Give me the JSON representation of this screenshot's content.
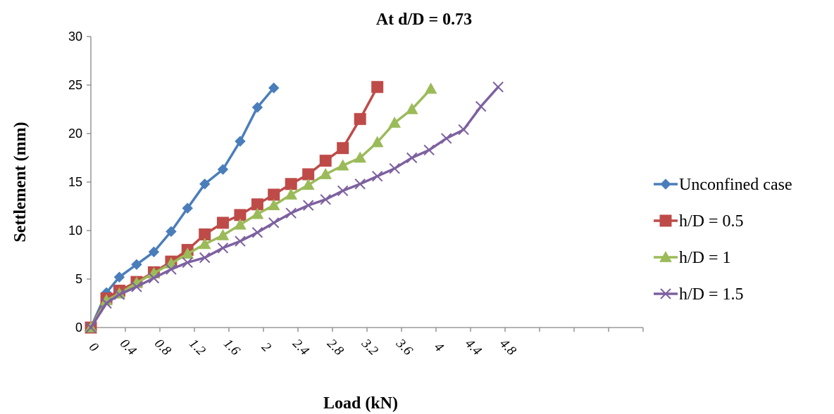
{
  "chart_data": {
    "type": "line",
    "title": "At d/D = 0.73",
    "xlabel": "Load (kN)",
    "ylabel": "Settlement (mm)",
    "xlim": [
      0,
      6.4
    ],
    "ylim": [
      0,
      30
    ],
    "x_ticks": [
      "0",
      "0.4",
      "0.8",
      "1.2",
      "1.6",
      "2",
      "2.4",
      "2.8",
      "3.2",
      "3.6",
      "4",
      "4.4",
      "4.8"
    ],
    "y_ticks": [
      "0",
      "5",
      "10",
      "15",
      "20",
      "25",
      "30"
    ],
    "grid": false,
    "legend_position": "right",
    "series": [
      {
        "name": "Unconfined case",
        "color": "#4A7EBB",
        "marker": "diamond",
        "points": [
          [
            0,
            0
          ],
          [
            0.18,
            3.6
          ],
          [
            0.33,
            5.2
          ],
          [
            0.53,
            6.5
          ],
          [
            0.73,
            7.8
          ],
          [
            0.93,
            9.9
          ],
          [
            1.12,
            12.3
          ],
          [
            1.32,
            14.8
          ],
          [
            1.53,
            16.3
          ],
          [
            1.73,
            19.2
          ],
          [
            1.93,
            22.7
          ],
          [
            2.12,
            24.7
          ]
        ]
      },
      {
        "name": "h/D = 0.5",
        "color": "#BE4B48",
        "marker": "square",
        "points": [
          [
            0,
            0
          ],
          [
            0.18,
            3.0
          ],
          [
            0.33,
            3.8
          ],
          [
            0.53,
            4.7
          ],
          [
            0.73,
            5.7
          ],
          [
            0.93,
            6.8
          ],
          [
            1.12,
            8.0
          ],
          [
            1.32,
            9.6
          ],
          [
            1.53,
            10.8
          ],
          [
            1.73,
            11.6
          ],
          [
            1.93,
            12.7
          ],
          [
            2.12,
            13.7
          ],
          [
            2.32,
            14.8
          ],
          [
            2.52,
            15.8
          ],
          [
            2.72,
            17.2
          ],
          [
            2.92,
            18.5
          ],
          [
            3.12,
            21.5
          ],
          [
            3.32,
            24.8
          ]
        ]
      },
      {
        "name": "h/D = 1",
        "color": "#9BBB59",
        "marker": "triangle",
        "points": [
          [
            0,
            0
          ],
          [
            0.18,
            2.8
          ],
          [
            0.33,
            3.5
          ],
          [
            0.53,
            4.6
          ],
          [
            0.73,
            5.6
          ],
          [
            0.93,
            6.6
          ],
          [
            1.12,
            7.6
          ],
          [
            1.32,
            8.6
          ],
          [
            1.53,
            9.5
          ],
          [
            1.73,
            10.6
          ],
          [
            1.93,
            11.7
          ],
          [
            2.12,
            12.6
          ],
          [
            2.32,
            13.7
          ],
          [
            2.52,
            14.7
          ],
          [
            2.72,
            15.8
          ],
          [
            2.92,
            16.7
          ],
          [
            3.12,
            17.5
          ],
          [
            3.32,
            19.1
          ],
          [
            3.52,
            21.1
          ],
          [
            3.72,
            22.5
          ],
          [
            3.94,
            24.6
          ]
        ]
      },
      {
        "name": "h/D = 1.5",
        "color": "#7D60A0",
        "marker": "x",
        "points": [
          [
            0,
            0
          ],
          [
            0.18,
            2.5
          ],
          [
            0.33,
            3.4
          ],
          [
            0.53,
            4.2
          ],
          [
            0.73,
            5.1
          ],
          [
            0.93,
            6.0
          ],
          [
            1.12,
            6.7
          ],
          [
            1.32,
            7.2
          ],
          [
            1.53,
            8.2
          ],
          [
            1.73,
            8.9
          ],
          [
            1.93,
            9.8
          ],
          [
            2.12,
            10.8
          ],
          [
            2.32,
            11.8
          ],
          [
            2.52,
            12.6
          ],
          [
            2.72,
            13.2
          ],
          [
            2.92,
            14.1
          ],
          [
            3.12,
            14.8
          ],
          [
            3.32,
            15.6
          ],
          [
            3.52,
            16.4
          ],
          [
            3.72,
            17.5
          ],
          [
            3.92,
            18.3
          ],
          [
            4.12,
            19.5
          ],
          [
            4.32,
            20.4
          ],
          [
            4.52,
            22.8
          ],
          [
            4.72,
            24.8
          ]
        ]
      }
    ]
  }
}
